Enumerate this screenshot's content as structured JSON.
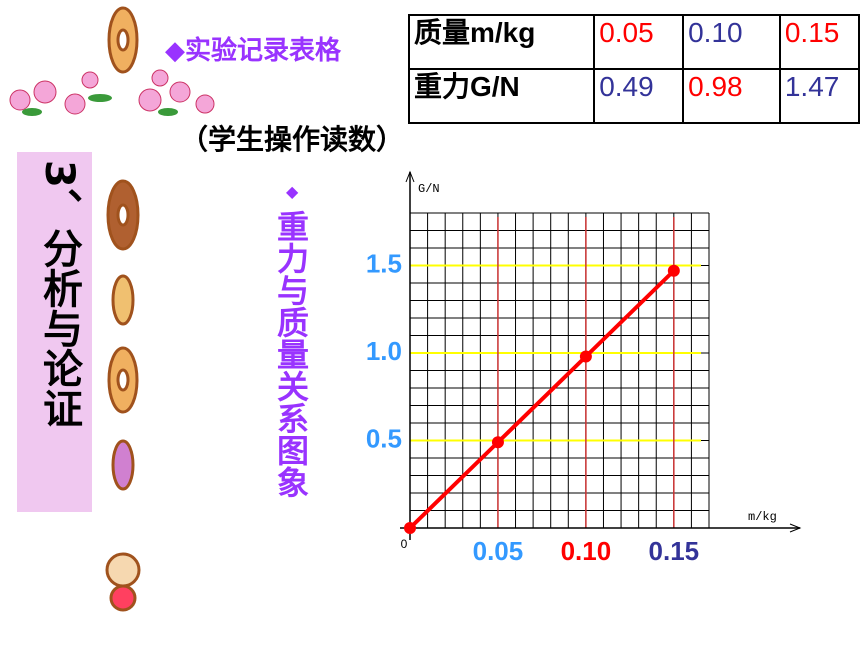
{
  "heading": "◆实验记录表格",
  "subheading": "（学生操作读数）",
  "section": "3、分析与论证",
  "chart_title_bullet": "◆",
  "table": {
    "rows": [
      [
        "质量m/kg",
        "0.05",
        "0.10",
        "0.15"
      ],
      [
        "重力G/N",
        "0.49",
        "0.98",
        "1.47"
      ]
    ],
    "colors": [
      [
        "#000000",
        "#ff0000",
        "#333399",
        "#ff0000"
      ],
      [
        "#000000",
        "#333399",
        "#ff0000",
        "#333399"
      ]
    ]
  },
  "chart_data": {
    "type": "line",
    "title": "重力与质量关系图象",
    "xlabel": "m/kg",
    "ylabel": "G/N",
    "x": [
      0,
      0.05,
      0.1,
      0.15
    ],
    "series": [
      {
        "name": "G",
        "color": "#ff0000",
        "values": [
          0,
          0.49,
          0.98,
          1.47
        ]
      }
    ],
    "xlim": [
      0,
      0.17
    ],
    "ylim": [
      0,
      1.8
    ],
    "xticks": [
      0,
      0.05,
      {
        "value": 0.1,
        "label": "0.10"
      },
      0.15
    ],
    "xtick_colors": [
      "#000000",
      "#3399ff",
      "#ff0000",
      "#333399"
    ],
    "yticks": [
      0.5,
      {
        "value": 1,
        "label": "1.0"
      },
      1.5
    ],
    "ytick_color": "#3399ff",
    "xgrid_color": "#cc3333",
    "ygrid_color": "#ffff00",
    "grid": true
  }
}
